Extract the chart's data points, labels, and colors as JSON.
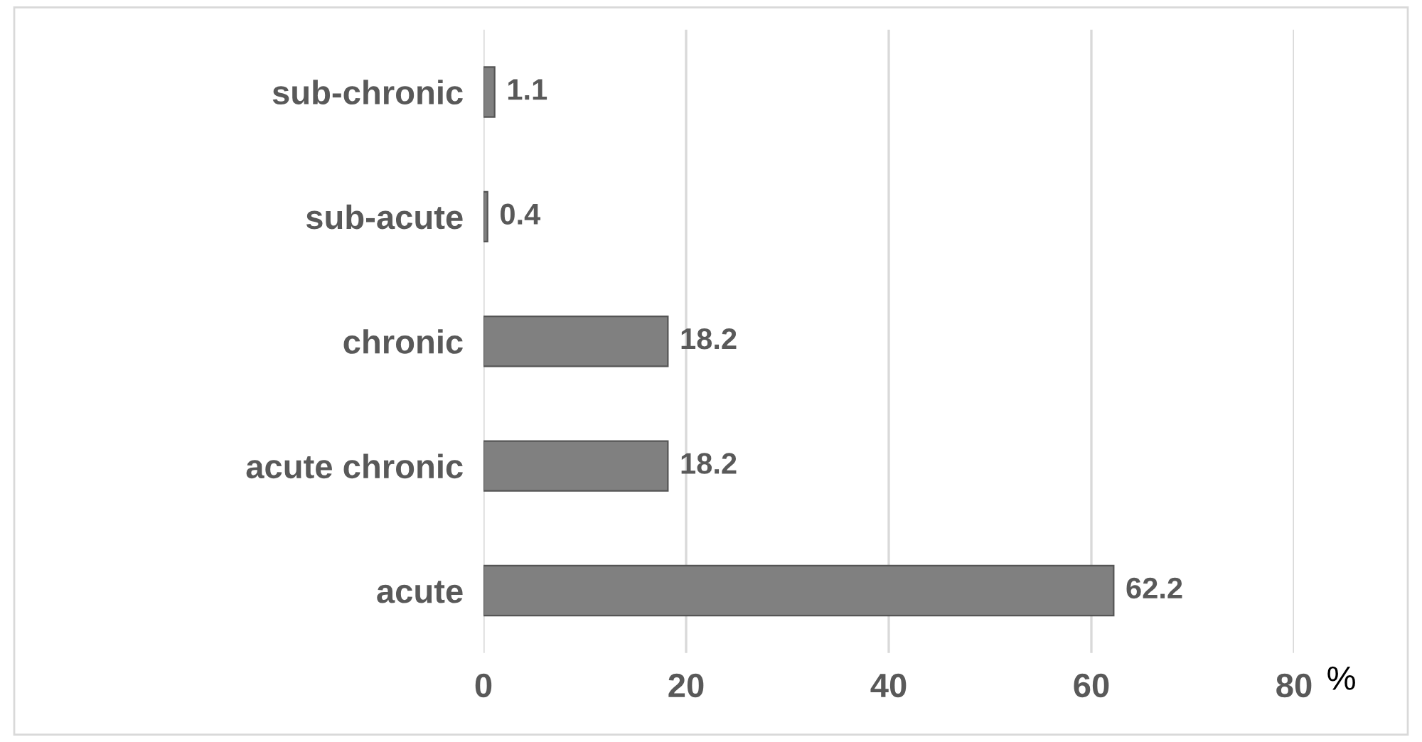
{
  "chart_data": {
    "type": "bar",
    "orientation": "horizontal",
    "categories": [
      "sub-chronic",
      "sub-acute",
      "chronic",
      "acute chronic",
      "acute"
    ],
    "values": [
      1.1,
      0.4,
      18.2,
      18.2,
      62.2
    ],
    "color": "#808080",
    "xlim": [
      0,
      80
    ],
    "xticks": [
      0,
      20,
      40,
      60,
      80
    ],
    "xlabel": "%",
    "grid": "x",
    "data_labels": true
  }
}
